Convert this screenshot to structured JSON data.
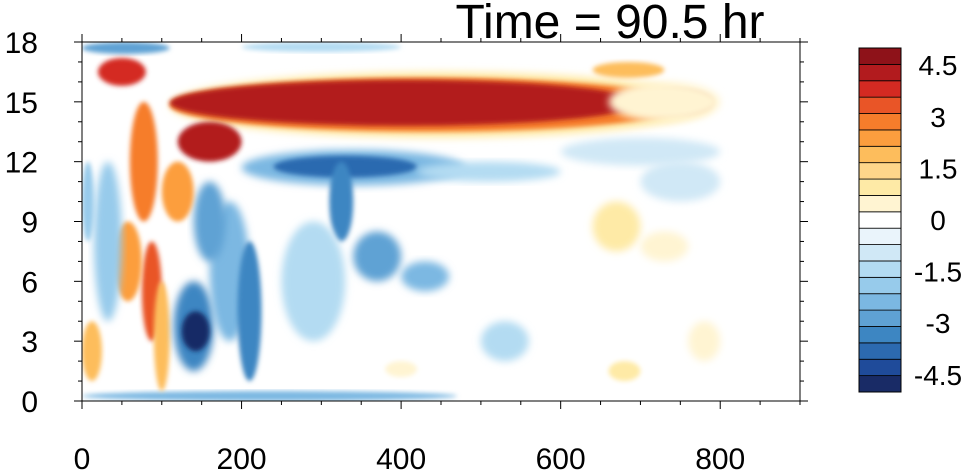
{
  "chart_data": {
    "type": "heatmap",
    "title": "Time = 90.5 hr",
    "xlabel": "",
    "ylabel": "",
    "xlim": [
      0,
      900
    ],
    "ylim": [
      0,
      18
    ],
    "x_ticks": [
      "0",
      "200",
      "400",
      "600",
      "800"
    ],
    "x_tick_values": [
      0,
      200,
      400,
      600,
      800
    ],
    "y_ticks": [
      "0",
      "3",
      "6",
      "9",
      "12",
      "15",
      "18"
    ],
    "y_tick_values": [
      0,
      3,
      6,
      9,
      12,
      15,
      18
    ],
    "colorbar": {
      "labels": [
        "4.5",
        "3",
        "1.5",
        "0",
        "-1.5",
        "-3",
        "-4.5"
      ],
      "label_values": [
        4.5,
        3,
        1.5,
        0,
        -1.5,
        -3,
        -4.5
      ],
      "levels": [
        -5,
        -4.5,
        -4,
        -3.5,
        -3,
        -2.5,
        -2,
        -1.5,
        -1,
        -0.5,
        0,
        0.5,
        1,
        1.5,
        2,
        2.5,
        3,
        3.5,
        4,
        4.5,
        5
      ],
      "colors": [
        "#192b66",
        "#1f4b9a",
        "#2c6ab0",
        "#3d86c2",
        "#5fa2d4",
        "#7bb8e2",
        "#97cbeb",
        "#b3dbf2",
        "#d0e8f6",
        "#eaf4fb",
        "#ffffff",
        "#fff4d2",
        "#feeaa6",
        "#fed68a",
        "#fdbd5c",
        "#fc9e3e",
        "#f67d2b",
        "#e95527",
        "#d42a22",
        "#b21b1e",
        "#8e1219"
      ]
    },
    "features": [
      {
        "kind": "positive-band",
        "x": [
          110,
          790
        ],
        "y": [
          13,
          16.5
        ],
        "value": 5
      },
      {
        "kind": "negative-band",
        "x": [
          230,
          460
        ],
        "y": [
          11,
          12.5
        ],
        "value": -3.5
      },
      {
        "kind": "negative-core",
        "x": [
          120,
          170
        ],
        "y": [
          2,
          5
        ],
        "value": -5
      },
      {
        "kind": "positive-streak",
        "x": [
          60,
          110
        ],
        "y": [
          2,
          16
        ],
        "value": 3.5
      },
      {
        "kind": "negative-surface",
        "x": [
          0,
          470
        ],
        "y": [
          0,
          0.6
        ],
        "value": -2
      }
    ]
  }
}
